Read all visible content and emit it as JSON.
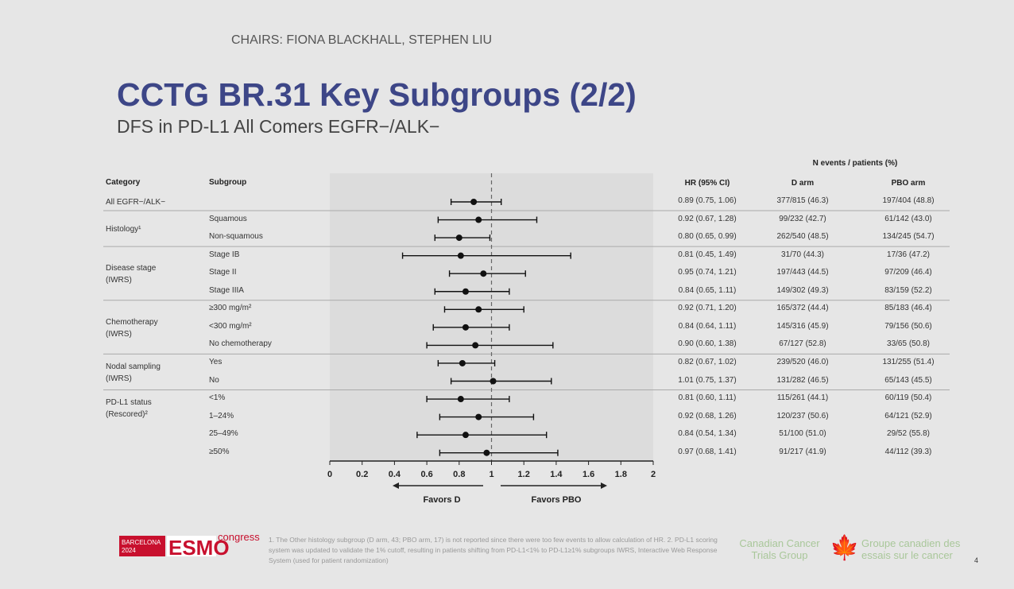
{
  "header": {
    "chairs": "CHAIRS: FIONA BLACKHALL, STEPHEN LIU",
    "title": "CCTG BR.31 Key Subgroups (2/2)",
    "subtitle": "DFS in PD-L1 All Comers EGFR−/ALK−"
  },
  "table_headers": {
    "category": "Category",
    "subgroup": "Subgroup",
    "hr": "HR (95% CI)",
    "n_events": "N events / patients (%)",
    "d_arm": "D arm",
    "pbo_arm": "PBO arm"
  },
  "categories": [
    {
      "label": "All EGFR−/ALK−",
      "row": 0
    },
    {
      "label": "Histology¹",
      "row": 1.5
    },
    {
      "label": "Disease stage (IWRS)",
      "row": 4
    },
    {
      "label": "Chemotherapy (IWRS)",
      "row": 7
    },
    {
      "label": "Nodal sampling (IWRS)",
      "row": 9.5
    },
    {
      "label": "PD-L1 status (Rescored)²",
      "row": 11.5
    }
  ],
  "chart_data": {
    "type": "forest",
    "xlabel_left": "Favors D",
    "xlabel_right": "Favors PBO",
    "xlim": [
      0,
      2
    ],
    "reference_line": 1,
    "xticks": [
      "0",
      "0.2",
      "0.4",
      "0.6",
      "0.8",
      "1",
      "1.2",
      "1.4",
      "1.6",
      "1.8",
      "2"
    ],
    "rows": [
      {
        "subgroup": "",
        "hr": 0.89,
        "lo": 0.75,
        "hi": 1.06,
        "hr_text": "0.89 (0.75, 1.06)",
        "d": "377/815 (46.3)",
        "pbo": "197/404 (48.8)"
      },
      {
        "subgroup": "Squamous",
        "hr": 0.92,
        "lo": 0.67,
        "hi": 1.28,
        "hr_text": "0.92 (0.67, 1.28)",
        "d": "99/232 (42.7)",
        "pbo": "61/142 (43.0)"
      },
      {
        "subgroup": "Non-squamous",
        "hr": 0.8,
        "lo": 0.65,
        "hi": 0.99,
        "hr_text": "0.80 (0.65, 0.99)",
        "d": "262/540 (48.5)",
        "pbo": "134/245 (54.7)"
      },
      {
        "subgroup": "Stage IB",
        "hr": 0.81,
        "lo": 0.45,
        "hi": 1.49,
        "hr_text": "0.81 (0.45, 1.49)",
        "d": "31/70 (44.3)",
        "pbo": "17/36 (47.2)"
      },
      {
        "subgroup": "Stage II",
        "hr": 0.95,
        "lo": 0.74,
        "hi": 1.21,
        "hr_text": "0.95 (0.74, 1.21)",
        "d": "197/443 (44.5)",
        "pbo": "97/209 (46.4)"
      },
      {
        "subgroup": "Stage IIIA",
        "hr": 0.84,
        "lo": 0.65,
        "hi": 1.11,
        "hr_text": "0.84 (0.65, 1.11)",
        "d": "149/302 (49.3)",
        "pbo": "83/159 (52.2)"
      },
      {
        "subgroup": "≥300 mg/m²",
        "hr": 0.92,
        "lo": 0.71,
        "hi": 1.2,
        "hr_text": "0.92 (0.71, 1.20)",
        "d": "165/372 (44.4)",
        "pbo": "85/183 (46.4)"
      },
      {
        "subgroup": "<300 mg/m²",
        "hr": 0.84,
        "lo": 0.64,
        "hi": 1.11,
        "hr_text": "0.84 (0.64, 1.11)",
        "d": "145/316 (45.9)",
        "pbo": "79/156 (50.6)"
      },
      {
        "subgroup": "No chemotherapy",
        "hr": 0.9,
        "lo": 0.6,
        "hi": 1.38,
        "hr_text": "0.90 (0.60, 1.38)",
        "d": "67/127 (52.8)",
        "pbo": "33/65 (50.8)"
      },
      {
        "subgroup": "Yes",
        "hr": 0.82,
        "lo": 0.67,
        "hi": 1.02,
        "hr_text": "0.82 (0.67, 1.02)",
        "d": "239/520 (46.0)",
        "pbo": "131/255 (51.4)"
      },
      {
        "subgroup": "No",
        "hr": 1.01,
        "lo": 0.75,
        "hi": 1.37,
        "hr_text": "1.01 (0.75, 1.37)",
        "d": "131/282 (46.5)",
        "pbo": "65/143 (45.5)"
      },
      {
        "subgroup": "<1%",
        "hr": 0.81,
        "lo": 0.6,
        "hi": 1.11,
        "hr_text": "0.81 (0.60, 1.11)",
        "d": "115/261 (44.1)",
        "pbo": "60/119 (50.4)"
      },
      {
        "subgroup": "1–24%",
        "hr": 0.92,
        "lo": 0.68,
        "hi": 1.26,
        "hr_text": "0.92 (0.68, 1.26)",
        "d": "120/237 (50.6)",
        "pbo": "64/121 (52.9)"
      },
      {
        "subgroup": "25–49%",
        "hr": 0.84,
        "lo": 0.54,
        "hi": 1.34,
        "hr_text": "0.84 (0.54, 1.34)",
        "d": "51/100 (51.0)",
        "pbo": "29/52 (55.8)"
      },
      {
        "subgroup": "≥50%",
        "hr": 0.97,
        "lo": 0.68,
        "hi": 1.41,
        "hr_text": "0.97 (0.68, 1.41)",
        "d": "91/217 (41.9)",
        "pbo": "44/112 (39.3)"
      }
    ],
    "separators_after_rows": [
      0,
      2,
      5,
      8,
      10
    ]
  },
  "footer": {
    "footnote": "1. The Other histology subgroup (D arm, 43; PBO arm, 17) is not reported since there were too few events to allow calculation of HR. 2. PD-L1 scoring system was updated to validate the 1% cutoff, resulting in patients shifting from PD-L1<1% to PD-L1≥1% subgroups IWRS, Interactive Web Response System (used for patient randomization)",
    "esmo_city": "BARCELONA 2024",
    "esmo": "ESMO",
    "congress": "congress",
    "cctg_en": "Canadian Cancer Trials Group",
    "cctg_fr": "Groupe canadien des essais sur le cancer",
    "page": "4"
  }
}
